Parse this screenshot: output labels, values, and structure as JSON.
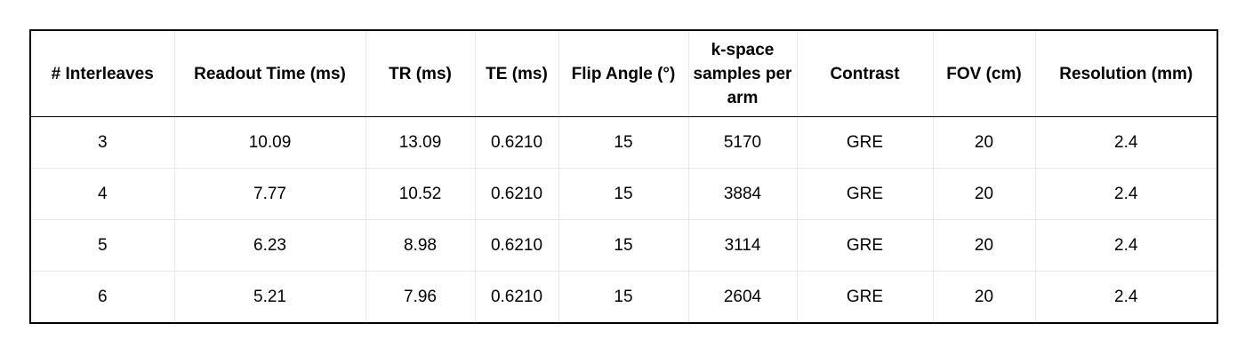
{
  "table": {
    "header": [
      "# Interleaves",
      "Readout Time (ms)",
      "TR (ms)",
      "TE (ms)",
      "Flip Angle (°)",
      "k-space samples per arm",
      "Contrast",
      "FOV (cm)",
      "Resolution (mm)"
    ],
    "rows": [
      [
        "3",
        "10.09",
        "13.09",
        "0.6210",
        "15",
        "5170",
        "GRE",
        "20",
        "2.4"
      ],
      [
        "4",
        "7.77",
        "10.52",
        "0.6210",
        "15",
        "3884",
        "GRE",
        "20",
        "2.4"
      ],
      [
        "5",
        "6.23",
        "8.98",
        "0.6210",
        "15",
        "3114",
        "GRE",
        "20",
        "2.4"
      ],
      [
        "6",
        "5.21",
        "7.96",
        "0.6210",
        "15",
        "2604",
        "GRE",
        "20",
        "2.4"
      ]
    ]
  }
}
